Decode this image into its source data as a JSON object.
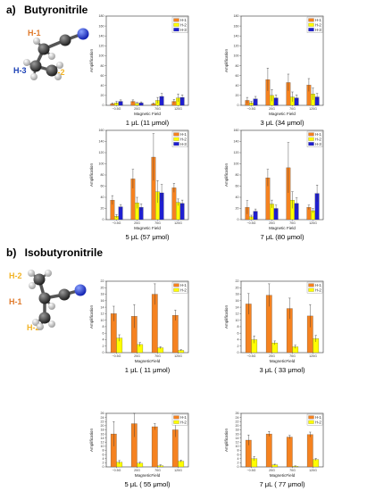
{
  "sections": [
    {
      "letter": "a)",
      "title": "Butyronitrile",
      "labels": {
        "h1": "H-1",
        "h2": "H-2",
        "h3": "H-3"
      }
    },
    {
      "letter": "b)",
      "title": "Isobutyronitrile",
      "labels": {
        "h1": "H-1",
        "h2a": "H-2",
        "h2b": "H-2"
      }
    }
  ],
  "colors": {
    "H-1": "#f58220",
    "H-2": "#ffff00",
    "H-3": "#1f1fd1",
    "label_h1": "#e07a2c",
    "label_h2": "#f2b324",
    "label_h3": "#1a3fb5"
  },
  "chart_data": [
    {
      "type": "bar",
      "caption": "1 μL (11 μmol)",
      "xlabel": "Magnetic Field",
      "ylabel": "Amplification",
      "ylim": [
        0,
        180
      ],
      "yticks": [
        0,
        20,
        40,
        60,
        80,
        100,
        120,
        140,
        160,
        180
      ],
      "categories": [
        "~0.5G",
        "20G",
        "70G",
        "120G"
      ],
      "series": [
        {
          "name": "H-1",
          "values": [
            3,
            8,
            3,
            8
          ],
          "errors": [
            2,
            3,
            2,
            4
          ]
        },
        {
          "name": "H-2",
          "values": [
            5,
            4,
            10,
            15
          ],
          "errors": [
            3,
            2,
            6,
            8
          ]
        },
        {
          "name": "H-3",
          "values": [
            8,
            5,
            18,
            16
          ],
          "errors": [
            3,
            2,
            6,
            5
          ]
        }
      ]
    },
    {
      "type": "bar",
      "caption": "3 μL (34 μmol)",
      "xlabel": "Magnetic Field",
      "ylabel": "Amplification",
      "ylim": [
        0,
        180
      ],
      "yticks": [
        0,
        20,
        40,
        60,
        80,
        100,
        120,
        140,
        160,
        180
      ],
      "categories": [
        "~0.5G",
        "20G",
        "70G",
        "120G"
      ],
      "series": [
        {
          "name": "H-1",
          "values": [
            10,
            52,
            46,
            41
          ],
          "errors": [
            6,
            23,
            17,
            13
          ]
        },
        {
          "name": "H-2",
          "values": [
            5,
            20,
            17,
            23
          ],
          "errors": [
            3,
            12,
            10,
            12
          ]
        },
        {
          "name": "H-3",
          "values": [
            13,
            15,
            15,
            17
          ],
          "errors": [
            5,
            6,
            6,
            7
          ]
        }
      ]
    },
    {
      "type": "bar",
      "caption": "5 μL (57 μmol)",
      "xlabel": "Magnetic Field",
      "ylabel": "Amplification",
      "ylim": [
        0,
        160
      ],
      "yticks": [
        0,
        20,
        40,
        60,
        80,
        100,
        120,
        140,
        160
      ],
      "categories": [
        "~0.5G",
        "20G",
        "70G",
        "120G"
      ],
      "series": [
        {
          "name": "H-1",
          "values": [
            35,
            73,
            112,
            57
          ],
          "errors": [
            8,
            17,
            42,
            8
          ]
        },
        {
          "name": "H-2",
          "values": [
            6,
            30,
            50,
            31
          ],
          "errors": [
            3,
            10,
            20,
            6
          ]
        },
        {
          "name": "H-3",
          "values": [
            23,
            22,
            48,
            29
          ],
          "errors": [
            4,
            6,
            15,
            6
          ]
        }
      ]
    },
    {
      "type": "bar",
      "caption": "7 μL (80 μmol)",
      "xlabel": "Magnetic Field",
      "ylabel": "Amplification",
      "ylim": [
        0,
        160
      ],
      "yticks": [
        0,
        20,
        40,
        60,
        80,
        100,
        120,
        140,
        160
      ],
      "categories": [
        "~0.5G",
        "20G",
        "70G",
        "120G"
      ],
      "series": [
        {
          "name": "H-1",
          "values": [
            22,
            75,
            93,
            22
          ],
          "errors": [
            12,
            15,
            45,
            4
          ]
        },
        {
          "name": "H-2",
          "values": [
            5,
            28,
            35,
            16
          ],
          "errors": [
            3,
            7,
            15,
            4
          ]
        },
        {
          "name": "H-3",
          "values": [
            15,
            20,
            29,
            47
          ],
          "errors": [
            4,
            6,
            10,
            15
          ]
        }
      ]
    },
    {
      "type": "bar",
      "caption": "1 μL ( 11 μmol)",
      "xlabel": "MagneticField",
      "ylabel": "Amplification",
      "ylim": [
        0,
        22
      ],
      "yticks": [
        0,
        2,
        4,
        6,
        8,
        10,
        12,
        14,
        16,
        18,
        20,
        22
      ],
      "categories": [
        "~0.5G",
        "20G",
        "70G",
        "120G"
      ],
      "series": [
        {
          "name": "H-1",
          "values": [
            12,
            11.2,
            18,
            11.5
          ],
          "errors": [
            2.3,
            3.6,
            3.2,
            1.6
          ]
        },
        {
          "name": "H-2",
          "values": [
            4.5,
            2.5,
            1.5,
            0.7
          ],
          "errors": [
            1,
            0.6,
            0.3,
            0.2
          ]
        }
      ]
    },
    {
      "type": "bar",
      "caption": "3 μL ( 33 μmol)",
      "xlabel": "MagneticField",
      "ylabel": "Amplification",
      "ylim": [
        0,
        22
      ],
      "yticks": [
        0,
        2,
        4,
        6,
        8,
        10,
        12,
        14,
        16,
        18,
        20,
        22
      ],
      "categories": [
        "~0.5G",
        "20G",
        "70G",
        "120G"
      ],
      "series": [
        {
          "name": "H-1",
          "values": [
            15,
            17.7,
            13.6,
            11.3
          ],
          "errors": [
            3.2,
            3.5,
            3.2,
            3.5
          ]
        },
        {
          "name": "H-2",
          "values": [
            4,
            3,
            1.8,
            4.3
          ],
          "errors": [
            1.1,
            0.6,
            0.5,
            1
          ]
        }
      ]
    },
    {
      "type": "bar",
      "caption": "5 μL ( 55 μmol)",
      "xlabel": "MagneticField",
      "ylabel": "Amplification",
      "ylim": [
        0,
        26
      ],
      "yticks": [
        0,
        2,
        4,
        6,
        8,
        10,
        12,
        14,
        16,
        18,
        20,
        22,
        24,
        26
      ],
      "categories": [
        "~0.5G",
        "20G",
        "70G",
        "120G"
      ],
      "series": [
        {
          "name": "H-1",
          "values": [
            16,
            21,
            19.5,
            18
          ],
          "errors": [
            6,
            6.5,
            1.5,
            3.5
          ]
        },
        {
          "name": "H-2",
          "values": [
            2.3,
            1.8,
            0.6,
            2.8
          ],
          "errors": [
            0.8,
            0.5,
            0.4,
            0.5
          ]
        }
      ]
    },
    {
      "type": "bar",
      "caption": "7 μL ( 77 μmol)",
      "xlabel": "MagneticField",
      "ylabel": "Amplification",
      "ylim": [
        0,
        26
      ],
      "yticks": [
        0,
        2,
        4,
        6,
        8,
        10,
        12,
        14,
        16,
        18,
        20,
        22,
        24,
        26
      ],
      "categories": [
        "~0.5G",
        "20G",
        "70G",
        "120G"
      ],
      "series": [
        {
          "name": "H-1",
          "values": [
            13,
            16,
            14.5,
            15.7
          ],
          "errors": [
            2.5,
            1.2,
            0.8,
            1.2
          ]
        },
        {
          "name": "H-2",
          "values": [
            4,
            1,
            0.3,
            3.6
          ],
          "errors": [
            1,
            0.3,
            0.2,
            0.5
          ]
        }
      ]
    }
  ]
}
